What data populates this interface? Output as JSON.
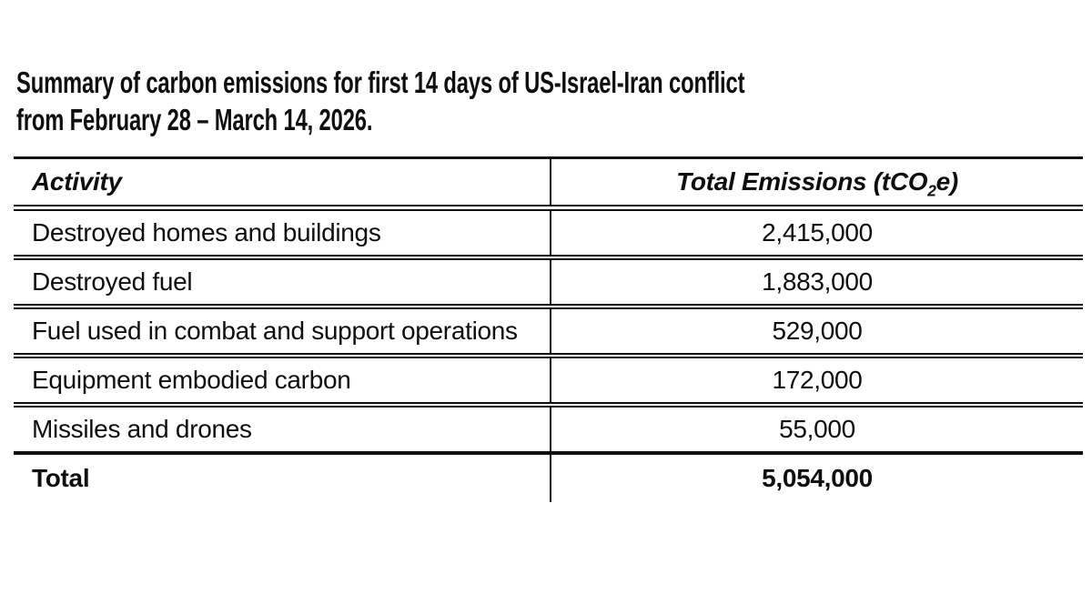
{
  "title": {
    "line1": "Summary of carbon emissions for first 14 days of US-Israel-Iran conflict",
    "line2": "from February 28 – March 14, 2026."
  },
  "table": {
    "headers": {
      "activity": "Activity",
      "emissions": {
        "prefix": "Total Emissions (tCO",
        "sub": "2",
        "suffix": "e)"
      }
    },
    "rows": [
      {
        "activity": "Destroyed homes and buildings",
        "emissions": "2,415,000"
      },
      {
        "activity": "Destroyed fuel",
        "emissions": "1,883,000"
      },
      {
        "activity": "Fuel used in combat and support operations",
        "emissions": "529,000"
      },
      {
        "activity": "Equipment embodied carbon",
        "emissions": "172,000"
      },
      {
        "activity": "Missiles and drones",
        "emissions": "55,000"
      }
    ],
    "total": {
      "label": "Total",
      "emissions": "5,054,000"
    }
  },
  "colors": {
    "text": "#0f0f0f",
    "border": "#101010",
    "background": "#ffffff"
  },
  "chart_data": {
    "type": "table",
    "title": "Summary of carbon emissions for first 14 days of US-Israel-Iran conflict from February 28 – March 14, 2026.",
    "columns": [
      "Activity",
      "Total Emissions (tCO2e)"
    ],
    "rows": [
      [
        "Destroyed homes and buildings",
        2415000
      ],
      [
        "Destroyed fuel",
        1883000
      ],
      [
        "Fuel used in combat and support operations",
        529000
      ],
      [
        "Equipment embodied carbon",
        172000
      ],
      [
        "Missiles and drones",
        55000
      ]
    ],
    "total_row": [
      "Total",
      5054000
    ],
    "units": "tCO2e",
    "layout": "two-column data table, activity left-aligned, values centered, bold total row"
  }
}
